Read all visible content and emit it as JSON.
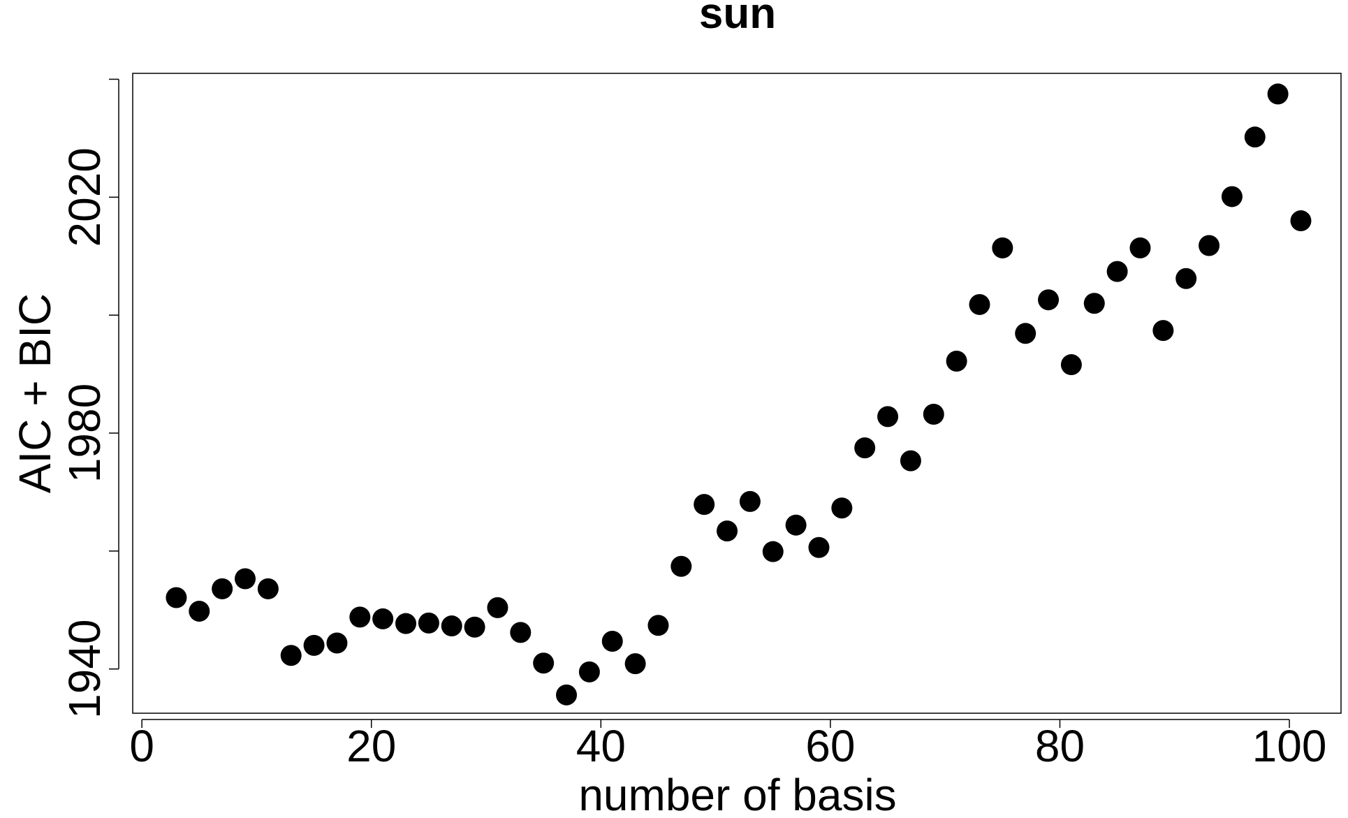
{
  "chart_data": {
    "type": "scatter",
    "title": "sun",
    "xlabel": "number of basis",
    "ylabel": "AIC + BIC",
    "xlim": [
      -0.8,
      104.5
    ],
    "ylim": [
      1932.5,
      2041
    ],
    "xticks": [
      0,
      20,
      40,
      60,
      80,
      100
    ],
    "yticks": [
      1940,
      1960,
      1980,
      2000,
      2020,
      2040
    ],
    "ytick_labels": [
      "1940",
      "",
      "1980",
      "",
      "2020",
      ""
    ],
    "grid": false,
    "point_color": "#000000",
    "points": [
      {
        "x": 3,
        "y": 1952.1
      },
      {
        "x": 5,
        "y": 1949.8
      },
      {
        "x": 7,
        "y": 1953.6
      },
      {
        "x": 9,
        "y": 1955.3
      },
      {
        "x": 11,
        "y": 1953.6
      },
      {
        "x": 13,
        "y": 1942.3
      },
      {
        "x": 15,
        "y": 1944.0
      },
      {
        "x": 17,
        "y": 1944.4
      },
      {
        "x": 19,
        "y": 1948.8
      },
      {
        "x": 21,
        "y": 1948.5
      },
      {
        "x": 23,
        "y": 1947.7
      },
      {
        "x": 25,
        "y": 1947.8
      },
      {
        "x": 27,
        "y": 1947.3
      },
      {
        "x": 29,
        "y": 1947.1
      },
      {
        "x": 31,
        "y": 1950.4
      },
      {
        "x": 33,
        "y": 1946.2
      },
      {
        "x": 35,
        "y": 1941.0
      },
      {
        "x": 37,
        "y": 1935.6
      },
      {
        "x": 39,
        "y": 1939.5
      },
      {
        "x": 41,
        "y": 1944.7
      },
      {
        "x": 43,
        "y": 1940.9
      },
      {
        "x": 45,
        "y": 1947.4
      },
      {
        "x": 47,
        "y": 1957.4
      },
      {
        "x": 49,
        "y": 1967.9
      },
      {
        "x": 51,
        "y": 1963.4
      },
      {
        "x": 53,
        "y": 1968.4
      },
      {
        "x": 55,
        "y": 1959.9
      },
      {
        "x": 57,
        "y": 1964.4
      },
      {
        "x": 59,
        "y": 1960.6
      },
      {
        "x": 61,
        "y": 1967.3
      },
      {
        "x": 63,
        "y": 1977.5
      },
      {
        "x": 65,
        "y": 1982.8
      },
      {
        "x": 67,
        "y": 1975.3
      },
      {
        "x": 69,
        "y": 1983.2
      },
      {
        "x": 71,
        "y": 1992.2
      },
      {
        "x": 73,
        "y": 2001.8
      },
      {
        "x": 75,
        "y": 2011.4
      },
      {
        "x": 77,
        "y": 1996.9
      },
      {
        "x": 79,
        "y": 2002.6
      },
      {
        "x": 81,
        "y": 1991.6
      },
      {
        "x": 83,
        "y": 2002.0
      },
      {
        "x": 85,
        "y": 2007.4
      },
      {
        "x": 87,
        "y": 2011.4
      },
      {
        "x": 89,
        "y": 1997.4
      },
      {
        "x": 91,
        "y": 2006.2
      },
      {
        "x": 93,
        "y": 2011.8
      },
      {
        "x": 95,
        "y": 2020.1
      },
      {
        "x": 97,
        "y": 2030.2
      },
      {
        "x": 99,
        "y": 2037.5
      },
      {
        "x": 101,
        "y": 2016.0
      }
    ]
  }
}
